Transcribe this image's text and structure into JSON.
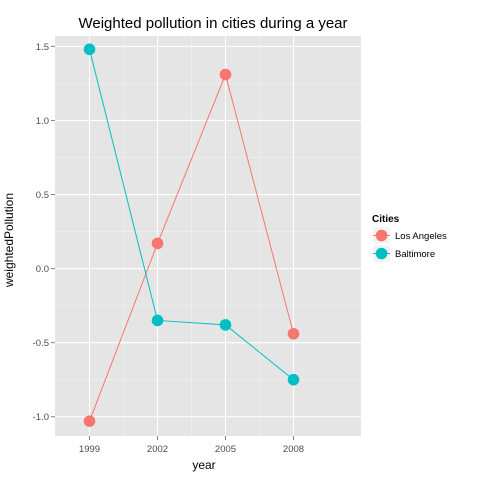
{
  "chart_data": {
    "type": "line",
    "title": "Weighted pollution in cities during a year",
    "xlabel": "year",
    "ylabel": "weightedPollution",
    "categories": [
      "1999",
      "2002",
      "2005",
      "2008"
    ],
    "y_ticks": [
      "-1.0",
      "-0.5",
      "0.0",
      "0.5",
      "1.0",
      "1.5"
    ],
    "y_tick_values": [
      -1.0,
      -0.5,
      0.0,
      0.5,
      1.0,
      1.5
    ],
    "ylim": [
      -1.13,
      1.57
    ],
    "grid": true,
    "legend_title": "Cities",
    "legend_position": "right",
    "series": [
      {
        "name": "Los Angeles",
        "color": "#F8766D",
        "values": [
          -1.03,
          0.17,
          1.31,
          -0.44
        ]
      },
      {
        "name": "Baltimore",
        "color": "#00BFC4",
        "values": [
          1.48,
          -0.35,
          -0.38,
          -0.75
        ]
      }
    ],
    "panel_background": "#E5E5E5",
    "grid_color": "#FFFFFF"
  }
}
